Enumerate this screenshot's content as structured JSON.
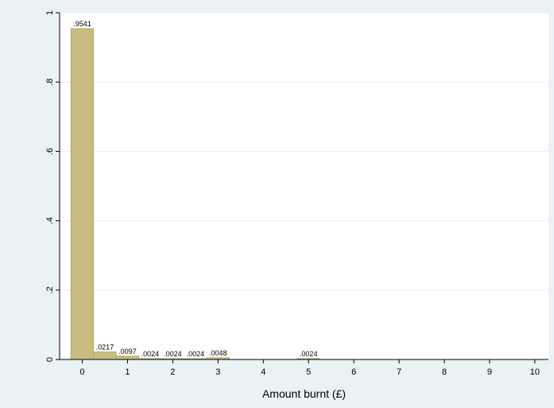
{
  "chart_data": {
    "type": "bar",
    "title": "",
    "xlabel": "Amount burnt (£)",
    "ylabel": "",
    "xlim": [
      -0.5,
      10.3
    ],
    "ylim": [
      0,
      1
    ],
    "xticks": [
      "0",
      "1",
      "2",
      "3",
      "4",
      "5",
      "6",
      "7",
      "8",
      "9",
      "10"
    ],
    "yticks": [
      "0",
      ".2",
      ".4",
      ".6",
      ".8",
      "1"
    ],
    "grid": true,
    "legend": "none",
    "bin_width": 0.5,
    "bars": [
      {
        "x": 0,
        "value": 0.9541,
        "label": ".9541"
      },
      {
        "x": 0.5,
        "value": 0.0217,
        "label": ".0217"
      },
      {
        "x": 1,
        "value": 0.0097,
        "label": ".0097"
      },
      {
        "x": 1.5,
        "value": 0.0024,
        "label": ".0024"
      },
      {
        "x": 2,
        "value": 0.0024,
        "label": ".0024"
      },
      {
        "x": 2.5,
        "value": 0.0024,
        "label": ".0024"
      },
      {
        "x": 3,
        "value": 0.0048,
        "label": ".0048"
      },
      {
        "x": 5,
        "value": 0.0024,
        "label": ".0024"
      }
    ],
    "colors": {
      "outer_background": "#eaf2f3",
      "plot_background": "#ffffff",
      "bar_fill": "#c8bd80",
      "bar_stroke": "#b3a86a",
      "grid": "#eaf2f3",
      "axis": "#000000"
    }
  }
}
